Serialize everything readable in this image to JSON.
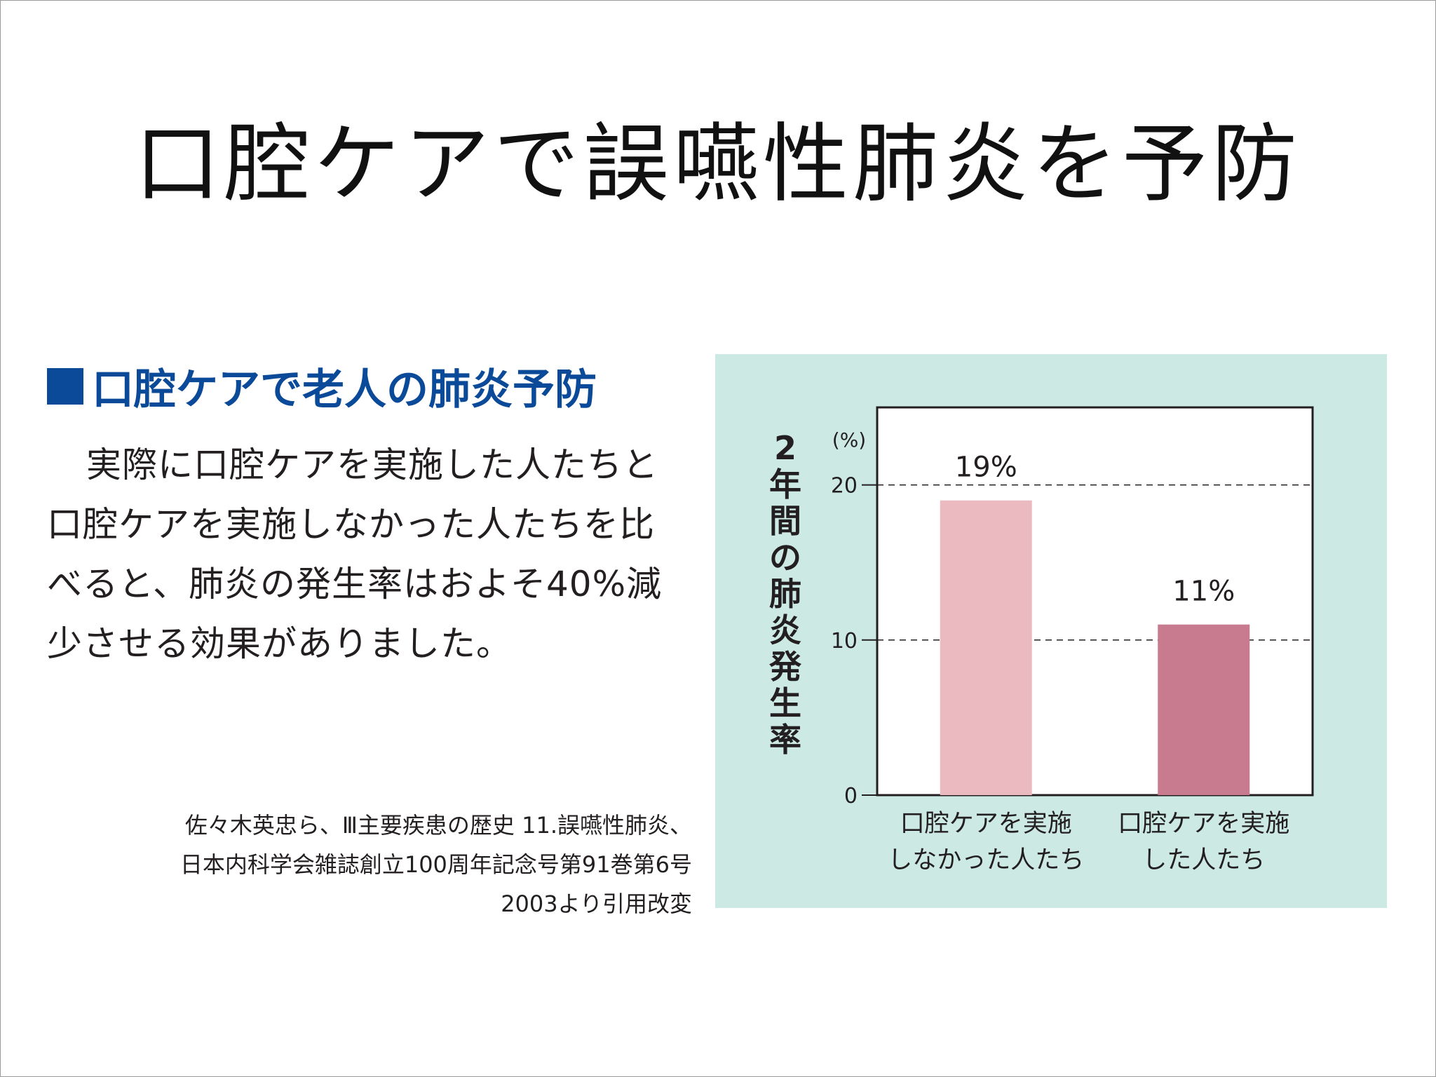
{
  "title": "口腔ケアで誤嚥性肺炎を予防",
  "section": {
    "heading": "口腔ケアで老人の肺炎予防",
    "body": "実際に口腔ケアを実施した人たちと口腔ケアを実施しなかった人たちを比べると、肺炎の発生率はおよそ40%減少させる効果がありました。"
  },
  "citation": {
    "line1": "佐々木英忠ら、Ⅲ主要疾患の歴史 11.誤嚥性肺炎、",
    "line2": "日本内科学会雑誌創立100周年記念号第91巻第6号",
    "line3": "2003より引用改変"
  },
  "colors": {
    "accent": "#0b4a98",
    "panel": "#cce9e3",
    "bar_light": "#ebbac0",
    "bar_dark": "#c87b8e"
  },
  "chart_data": {
    "type": "bar",
    "ylabel": "2年間の肺炎発生率",
    "yunit": "(%)",
    "ylim": [
      0,
      25
    ],
    "yticks": [
      0,
      10,
      20
    ],
    "grid": "dashed at 10 and 20",
    "categories": [
      [
        "口腔ケアを実施",
        "しなかった人たち"
      ],
      [
        "口腔ケアを実施",
        "した人たち"
      ]
    ],
    "values": [
      19,
      11
    ],
    "value_labels": [
      "19%",
      "11%"
    ],
    "bar_colors": [
      "#ebbac0",
      "#c87b8e"
    ]
  }
}
